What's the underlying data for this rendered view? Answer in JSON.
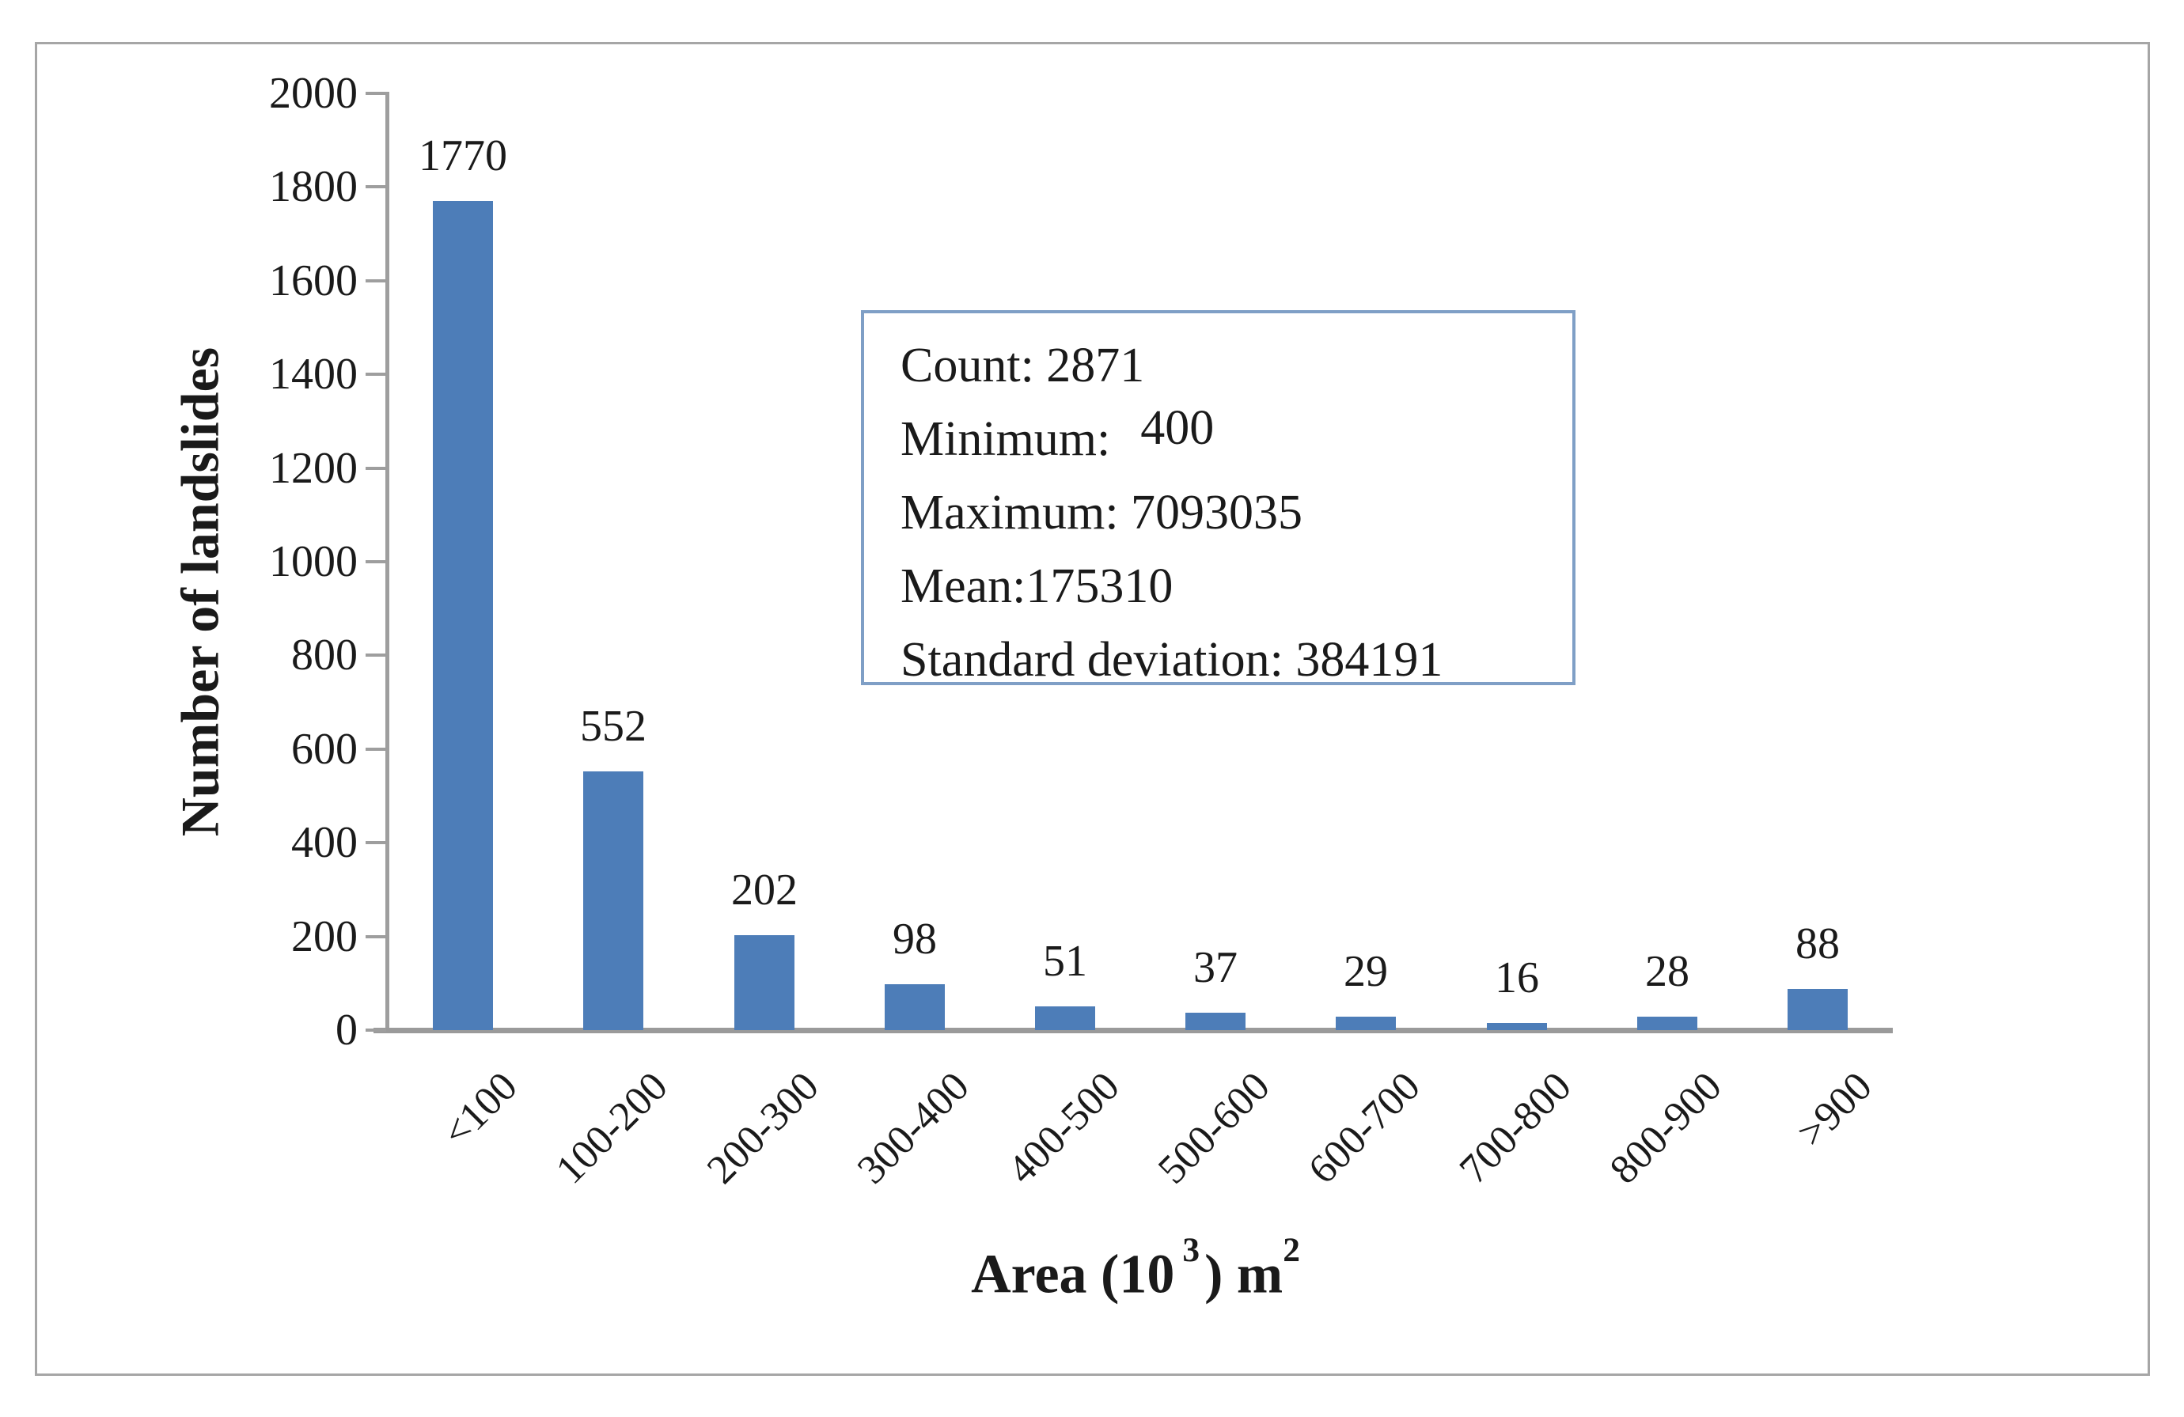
{
  "chart_data": {
    "type": "bar",
    "title": "",
    "categories": [
      "<100",
      "100-200",
      "200-300",
      "300-400",
      "400-500",
      "500-600",
      "600-700",
      "700-800",
      "800-900",
      ">900"
    ],
    "values": [
      1770,
      552,
      202,
      98,
      51,
      37,
      29,
      16,
      28,
      88
    ],
    "ylabel": "Number of landslides",
    "xlabel": "Area (10³) m²",
    "xlabel_parts": {
      "part1": "Area (10",
      "sup1": "3",
      "part2": ") m",
      "sup2": "2"
    },
    "yticks": [
      0,
      200,
      400,
      600,
      800,
      1000,
      1200,
      1400,
      1600,
      1800,
      2000
    ],
    "ylim": [
      0,
      2000
    ],
    "grid": "off",
    "legend": "none",
    "bar_color": "#4d7db8",
    "axis_color": "#9e9e9e",
    "data_labels_shown": true
  },
  "stats_box": {
    "lines": [
      "Count: 2871",
      {
        "label": "Minimum:",
        "value": "400"
      },
      "Maximum: 7093035",
      "Mean:175310",
      "Standard deviation: 384191"
    ],
    "border_color": "#7f9fc6"
  }
}
